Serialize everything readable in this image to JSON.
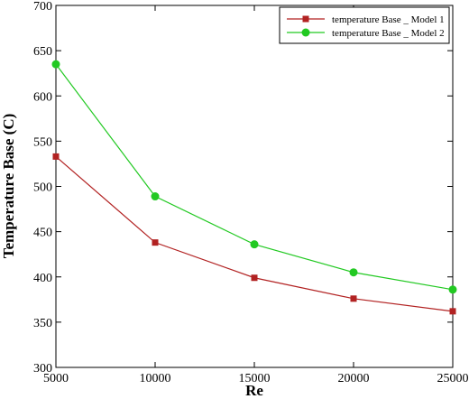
{
  "chart_data": {
    "type": "line",
    "title": "",
    "xlabel": "Re",
    "ylabel": "Temperature Base (C)",
    "xlim": [
      5000,
      25000
    ],
    "ylim": [
      300,
      700
    ],
    "xticks": [
      5000,
      10000,
      15000,
      20000,
      25000
    ],
    "yticks": [
      300,
      350,
      400,
      450,
      500,
      550,
      600,
      650,
      700
    ],
    "grid": false,
    "legend_position": "top-right",
    "x": [
      5000,
      10000,
      15000,
      20000,
      25000
    ],
    "series": [
      {
        "name": "temperature Base _ Model 1",
        "color": "#b22222",
        "marker": "square",
        "values": [
          533,
          438,
          399,
          376,
          362
        ]
      },
      {
        "name": "temperature Base _ Model 2",
        "color": "#22c922",
        "marker": "circle",
        "values": [
          635,
          489,
          436,
          405,
          386
        ]
      }
    ]
  }
}
